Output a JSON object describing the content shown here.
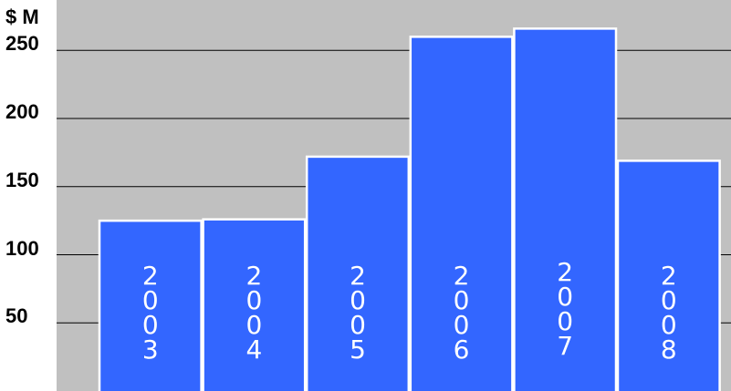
{
  "chart_data": {
    "type": "bar",
    "categories": [
      "2003",
      "2004",
      "2005",
      "2006",
      "2007",
      "2008"
    ],
    "values": [
      125,
      126,
      172,
      260,
      266,
      169
    ],
    "title": "",
    "ylabel": "$ M",
    "xlabel": "",
    "yticks": [
      "50",
      "100",
      "150",
      "200",
      "250"
    ],
    "ylim": [
      0,
      287
    ],
    "grid": true,
    "legend": "none",
    "colors": {
      "bar_fill": "#3366ff",
      "bar_stroke": "#ffffff",
      "plot_background": "#c0c0c0",
      "gridline": "#000000",
      "bar_label": "#ffffff"
    }
  }
}
